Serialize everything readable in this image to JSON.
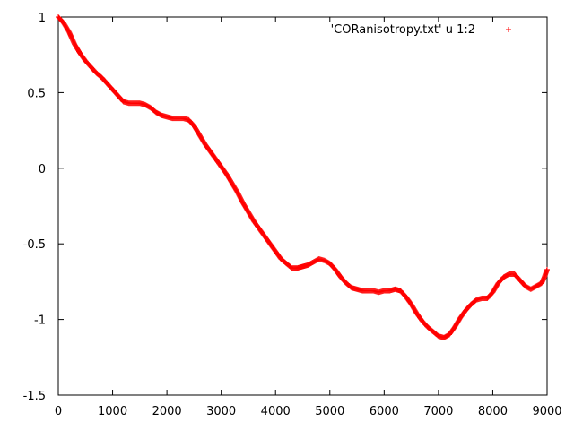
{
  "chart_data": {
    "type": "scatter",
    "xlim": [
      0,
      9000
    ],
    "ylim": [
      -1.5,
      1
    ],
    "xticks": [
      0,
      1000,
      2000,
      3000,
      4000,
      5000,
      6000,
      7000,
      8000,
      9000
    ],
    "yticks": [
      1,
      0.5,
      0,
      -0.5,
      -1,
      -1.5
    ],
    "xtick_labels": [
      "0",
      "1000",
      "2000",
      "3000",
      "4000",
      "5000",
      "6000",
      "7000",
      "8000",
      "9000"
    ],
    "ytick_labels": [
      "1",
      "0.5",
      "0",
      "-0.5",
      "-1",
      "-1.5"
    ],
    "grid": false,
    "legend_position": "top-right",
    "series": [
      {
        "name": "'CORanisotropy.txt' u 1:2",
        "color": "#ff0000",
        "marker": "plus",
        "points": [
          [
            0,
            1.0
          ],
          [
            100,
            0.96
          ],
          [
            200,
            0.9
          ],
          [
            300,
            0.82
          ],
          [
            400,
            0.76
          ],
          [
            500,
            0.71
          ],
          [
            600,
            0.67
          ],
          [
            700,
            0.63
          ],
          [
            800,
            0.6
          ],
          [
            900,
            0.56
          ],
          [
            1000,
            0.52
          ],
          [
            1100,
            0.48
          ],
          [
            1200,
            0.44
          ],
          [
            1300,
            0.43
          ],
          [
            1400,
            0.43
          ],
          [
            1500,
            0.43
          ],
          [
            1600,
            0.42
          ],
          [
            1700,
            0.4
          ],
          [
            1800,
            0.37
          ],
          [
            1900,
            0.35
          ],
          [
            2000,
            0.34
          ],
          [
            2100,
            0.33
          ],
          [
            2200,
            0.33
          ],
          [
            2300,
            0.33
          ],
          [
            2400,
            0.32
          ],
          [
            2500,
            0.28
          ],
          [
            2600,
            0.22
          ],
          [
            2700,
            0.16
          ],
          [
            2800,
            0.11
          ],
          [
            2900,
            0.06
          ],
          [
            3000,
            0.01
          ],
          [
            3100,
            -0.04
          ],
          [
            3200,
            -0.1
          ],
          [
            3300,
            -0.16
          ],
          [
            3400,
            -0.23
          ],
          [
            3500,
            -0.29
          ],
          [
            3600,
            -0.35
          ],
          [
            3700,
            -0.4
          ],
          [
            3800,
            -0.45
          ],
          [
            3900,
            -0.5
          ],
          [
            4000,
            -0.55
          ],
          [
            4100,
            -0.6
          ],
          [
            4200,
            -0.63
          ],
          [
            4300,
            -0.66
          ],
          [
            4400,
            -0.66
          ],
          [
            4500,
            -0.65
          ],
          [
            4600,
            -0.64
          ],
          [
            4700,
            -0.62
          ],
          [
            4800,
            -0.6
          ],
          [
            4900,
            -0.61
          ],
          [
            5000,
            -0.63
          ],
          [
            5100,
            -0.67
          ],
          [
            5200,
            -0.72
          ],
          [
            5300,
            -0.76
          ],
          [
            5400,
            -0.79
          ],
          [
            5500,
            -0.8
          ],
          [
            5600,
            -0.81
          ],
          [
            5700,
            -0.81
          ],
          [
            5800,
            -0.81
          ],
          [
            5900,
            -0.82
          ],
          [
            6000,
            -0.81
          ],
          [
            6100,
            -0.81
          ],
          [
            6200,
            -0.8
          ],
          [
            6300,
            -0.81
          ],
          [
            6400,
            -0.85
          ],
          [
            6500,
            -0.9
          ],
          [
            6600,
            -0.96
          ],
          [
            6700,
            -1.01
          ],
          [
            6800,
            -1.05
          ],
          [
            6900,
            -1.08
          ],
          [
            7000,
            -1.11
          ],
          [
            7100,
            -1.12
          ],
          [
            7200,
            -1.1
          ],
          [
            7300,
            -1.05
          ],
          [
            7400,
            -0.99
          ],
          [
            7500,
            -0.94
          ],
          [
            7600,
            -0.9
          ],
          [
            7700,
            -0.87
          ],
          [
            7800,
            -0.86
          ],
          [
            7900,
            -0.86
          ],
          [
            8000,
            -0.82
          ],
          [
            8100,
            -0.76
          ],
          [
            8200,
            -0.72
          ],
          [
            8300,
            -0.7
          ],
          [
            8400,
            -0.7
          ],
          [
            8500,
            -0.74
          ],
          [
            8600,
            -0.78
          ],
          [
            8700,
            -0.8
          ],
          [
            8800,
            -0.78
          ],
          [
            8900,
            -0.76
          ],
          [
            8950,
            -0.72
          ],
          [
            9000,
            -0.67
          ]
        ]
      }
    ]
  }
}
